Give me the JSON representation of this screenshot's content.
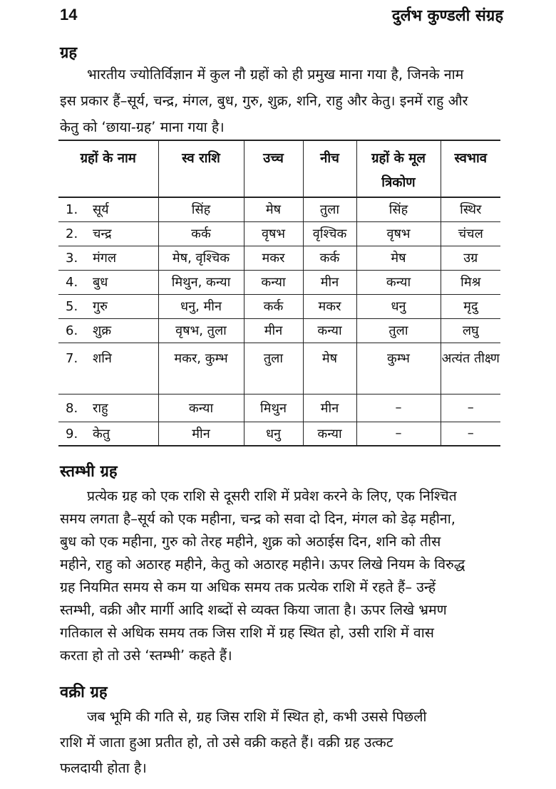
{
  "header": {
    "page_number": "14",
    "book_title": "दुर्लभ कुण्डली संग्रह"
  },
  "section1": {
    "heading": "ग्रह",
    "lines": [
      "भारतीय ज्योतिर्विज्ञान में कुल नौ ग्रहों को ही प्रमुख माना गया है, जिनके नाम",
      "इस प्रकार हैं–सूर्य, चन्द्र, मंगल, बुध, गुरु, शुक्र, शनि, राहु और केतु। इनमें राहु और",
      "केतु को ‘छाया-ग्रह’ माना गया है।"
    ]
  },
  "table": {
    "headers": [
      "ग्रहों के नाम",
      "स्व राशि",
      "उच्च",
      "नीच",
      "ग्रहों के मूल त्रिकोण",
      "स्वभाव"
    ],
    "rows": [
      {
        "num": "1.",
        "name": "सूर्य",
        "swarashi": "सिंह",
        "uchch": "मेष",
        "neech": "तुला",
        "trikon": "सिंह",
        "swabhav": "स्थिर"
      },
      {
        "num": "2.",
        "name": "चन्द्र",
        "swarashi": "कर्क",
        "uchch": "वृषभ",
        "neech": "वृश्चिक",
        "trikon": "वृषभ",
        "swabhav": "चंचल"
      },
      {
        "num": "3.",
        "name": "मंगल",
        "swarashi": "मेष, वृश्चिक",
        "uchch": "मकर",
        "neech": "कर्क",
        "trikon": "मेष",
        "swabhav": "उग्र"
      },
      {
        "num": "4.",
        "name": "बुध",
        "swarashi": "मिथुन, कन्या",
        "uchch": "कन्या",
        "neech": "मीन",
        "trikon": "कन्या",
        "swabhav": "मिश्र"
      },
      {
        "num": "5.",
        "name": "गुरु",
        "swarashi": "धनु, मीन",
        "uchch": "कर्क",
        "neech": "मकर",
        "trikon": "धनु",
        "swabhav": "मृदु"
      },
      {
        "num": "6.",
        "name": "शुक्र",
        "swarashi": "वृषभ, तुला",
        "uchch": "मीन",
        "neech": "कन्या",
        "trikon": "तुला",
        "swabhav": "लघु"
      },
      {
        "num": "7.",
        "name": "शनि",
        "swarashi": "मकर, कुम्भ",
        "uchch": "तुला",
        "neech": "मेष",
        "trikon": "कुम्भ",
        "swabhav": "अत्यंत तीक्ष्ण"
      },
      {
        "num": "8.",
        "name": "राहु",
        "swarashi": "कन्या",
        "uchch": "मिथुन",
        "neech": "मीन",
        "trikon": "–",
        "swabhav": "–"
      },
      {
        "num": "9.",
        "name": "केतु",
        "swarashi": "मीन",
        "uchch": "धनु",
        "neech": "कन्या",
        "trikon": "–",
        "swabhav": "–"
      }
    ]
  },
  "section2": {
    "heading": "स्तम्भी ग्रह",
    "lines": [
      "प्रत्येक ग्रह को एक राशि से दूसरी राशि में प्रवेश करने के लिए, एक निश्चित",
      "समय लगता है–सूर्य को एक महीना, चन्द्र को सवा दो दिन, मंगल को डेढ़ महीना,",
      "बुध को एक महीना, गुरु को तेरह महीने, शुक्र को अठाईस दिन, शनि को तीस",
      "महीने, राहु को अठारह महीने, केतु को अठारह महीने। ऊपर लिखे नियम के विरुद्ध",
      "ग्रह नियमित समय से कम या अधिक समय तक प्रत्येक राशि में रहते हैं– उन्हें",
      "स्तम्भी, वक्री और मार्गी आदि शब्दों से व्यक्त किया जाता है। ऊपर लिखे भ्रमण",
      "गतिकाल से अधिक समय तक जिस राशि में ग्रह स्थित हो, उसी राशि में वास",
      "करता हो तो उसे ‘स्तम्भी’ कहते हैं।"
    ]
  },
  "section3": {
    "heading": "वक्री ग्रह",
    "lines": [
      "जब भूमि की गति से, ग्रह जिस राशि में स्थित हो, कभी उससे पिछली",
      "राशि में जाता हुआ प्रतीत हो, तो उसे वक्री कहते हैं। वक्री ग्रह उत्कट",
      "फलदायी होता है।"
    ]
  }
}
